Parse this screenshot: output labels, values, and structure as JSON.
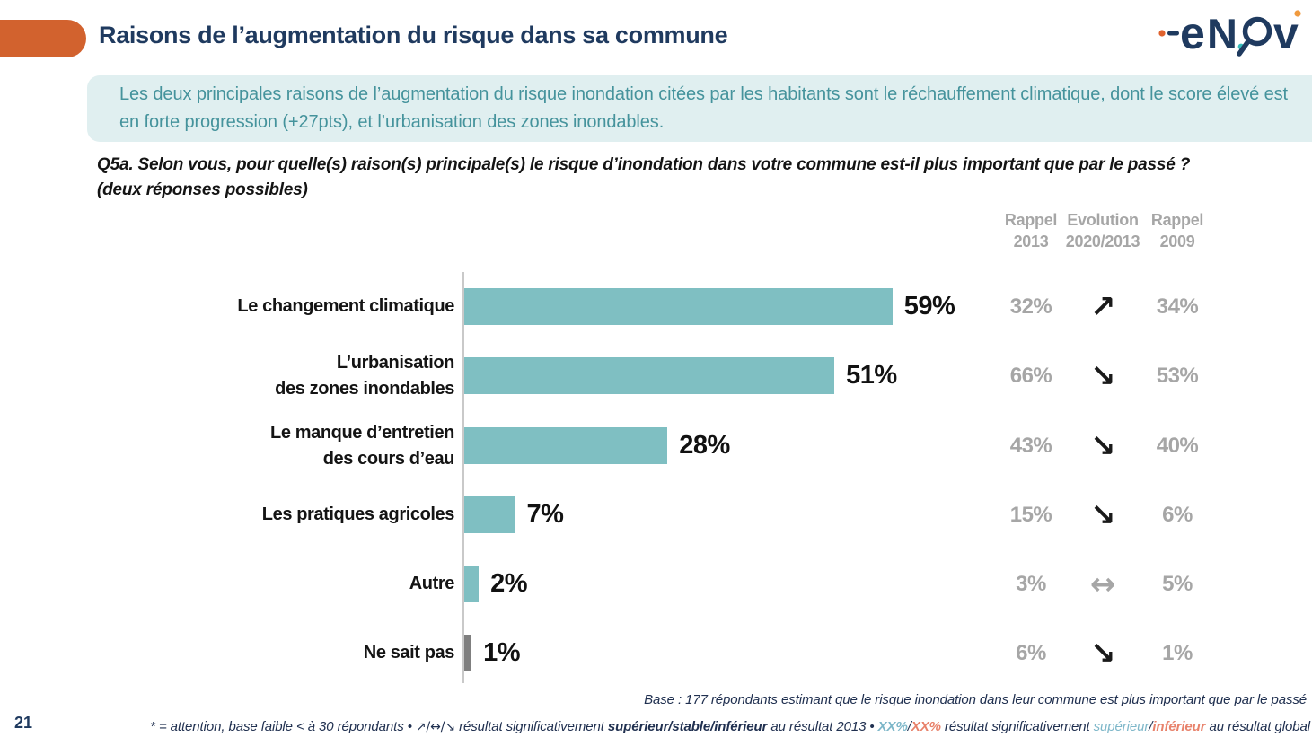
{
  "header": {
    "title": "Raisons de l’augmentation du risque dans sa commune",
    "logo": {
      "brand": "enov",
      "l1": "e",
      "l2": "N",
      "l3": "v"
    }
  },
  "summary": {
    "text": "Les deux principales raisons de l’augmentation du risque inondation citées par les habitants sont le réchauffement climatique, dont le score élevé est en forte progression (+27pts), et l’urbanisation des zones inondables."
  },
  "question": {
    "text": "Q5a. Selon vous, pour quelle(s) raison(s) principale(s) le risque d’inondation dans votre commune est-il plus important que par le passé ?\n(deux réponses possibles)"
  },
  "columns": {
    "rappel2013": "Rappel\n2013",
    "evolution": "Evolution\n2020/2013",
    "rappel2009": "Rappel\n2009"
  },
  "chart": {
    "bar_color": "#7FBFC2",
    "rows": [
      {
        "label": "Le changement climatique",
        "value": 59,
        "value_label": "59%",
        "color": "#7FBFC2",
        "rappel2013": "32%",
        "arrow": "↗",
        "rappel2009": "34%"
      },
      {
        "label": "L’urbanisation\ndes zones inondables",
        "value": 51,
        "value_label": "51%",
        "color": "#7FBFC2",
        "rappel2013": "66%",
        "arrow": "↘",
        "rappel2009": "53%"
      },
      {
        "label": "Le manque d’entretien\ndes cours d’eau",
        "value": 28,
        "value_label": "28%",
        "color": "#7FBFC2",
        "rappel2013": "43%",
        "arrow": "↘",
        "rappel2009": "40%"
      },
      {
        "label": "Les pratiques agricoles",
        "value": 7,
        "value_label": "7%",
        "color": "#7FBFC2",
        "rappel2013": "15%",
        "arrow": "↘",
        "rappel2009": "6%"
      },
      {
        "label": "Autre",
        "value": 2,
        "value_label": "2%",
        "color": "#7FBFC2",
        "rappel2013": "3%",
        "arrow": "↔",
        "rappel2009": "5%"
      },
      {
        "label": "Ne sait pas",
        "value": 1,
        "value_label": "1%",
        "color": "#7F7F7F",
        "rappel2013": "6%",
        "arrow": "↘",
        "rappel2009": "1%"
      }
    ]
  },
  "chart_data": {
    "type": "bar",
    "orientation": "horizontal",
    "title": "Q5a. Selon vous, pour quelle(s) raison(s) principale(s) le risque d’inondation dans votre commune est-il plus important que par le passé ? (deux réponses possibles)",
    "categories": [
      "Le changement climatique",
      "L’urbanisation des zones inondables",
      "Le manque d’entretien des cours d’eau",
      "Les pratiques agricoles",
      "Autre",
      "Ne sait pas"
    ],
    "series": [
      {
        "name": "2020",
        "values": [
          59,
          51,
          28,
          7,
          2,
          1
        ]
      },
      {
        "name": "Rappel 2013",
        "values": [
          32,
          66,
          43,
          15,
          3,
          6
        ]
      },
      {
        "name": "Rappel 2009",
        "values": [
          34,
          53,
          40,
          6,
          5,
          1
        ]
      }
    ],
    "evolution_2020_2013": [
      "up",
      "down",
      "down",
      "down",
      "stable",
      "down"
    ],
    "unit": "%",
    "xlim": [
      0,
      60
    ],
    "grid": false,
    "legend": "none"
  },
  "footer": {
    "base": "Base : 177 répondants estimant que le risque inondation dans leur commune est plus important que par le passé",
    "page_number": "21",
    "note": {
      "part1": "* = attention, base faible < à 30 répondants • ",
      "arrows": "↗/↔/↘",
      "part2": " résultat significativement ",
      "emph1": "supérieur/stable/inférieur",
      "part3": " au résultat 2013 • ",
      "xx_up": "XX%",
      "slash1": "/",
      "xx_down": "XX%",
      "part4": " résultat significativement ",
      "sup": "supérieur",
      "slash2": "/",
      "inf": "inférieur",
      "part5": " au résultat global"
    }
  }
}
